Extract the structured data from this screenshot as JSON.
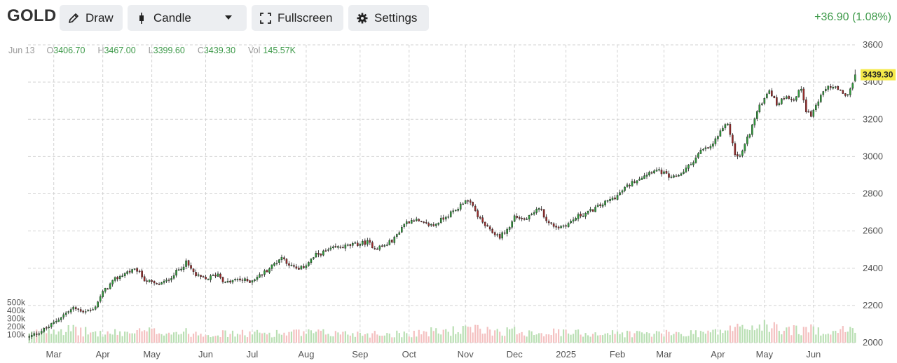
{
  "toolbar": {
    "symbol": "GOLD",
    "draw_label": "Draw",
    "chart_type_label": "Candle",
    "fullscreen_label": "Fullscreen",
    "settings_label": "Settings",
    "change_text": "+36.90 (1.08%)"
  },
  "ohlc_bar": {
    "date": "Jun 13",
    "o_key": "O",
    "o_val": "3406.70",
    "h_key": "H",
    "h_val": "3467.00",
    "l_key": "L",
    "l_val": "3399.60",
    "c_key": "C",
    "c_val": "3439.30",
    "vol_key": "Vol",
    "vol_val": "145.57K"
  },
  "colors": {
    "up": "#2f9a3a",
    "down": "#9c2b2b",
    "vol_up": "#b9dfb3",
    "vol_down": "#f4c0c0",
    "last_price_bg": "#f5e94a",
    "change_text": "#3e9a4a"
  },
  "chart_data": {
    "type": "candlestick",
    "title": "",
    "ylim": [
      2000,
      3600
    ],
    "y_ticks": [
      "3600",
      "3400",
      "3200",
      "3000",
      "2800",
      "2600",
      "2400",
      "2200",
      "2000"
    ],
    "y_tick_values": [
      3600,
      3400,
      3200,
      3000,
      2800,
      2600,
      2400,
      2200,
      2000
    ],
    "volume_ticks": [
      "500k",
      "400k",
      "300k",
      "200k",
      "100k"
    ],
    "volume_tick_values": [
      500000,
      400000,
      300000,
      200000,
      100000
    ],
    "volume_max": 600000,
    "x_ticks": [
      "Mar",
      "Apr",
      "May",
      "Jun",
      "Jul",
      "Aug",
      "Sep",
      "Oct",
      "Nov",
      "Dec",
      "2025",
      "Feb",
      "Mar",
      "Apr",
      "May",
      "Jun"
    ],
    "x_tick_index": [
      10,
      30,
      50,
      72,
      91,
      113,
      135,
      155,
      178,
      198,
      219,
      240,
      259,
      281,
      300,
      320
    ],
    "last_price": "3439.30",
    "grid": true,
    "price_anchors": [
      [
        0,
        2030
      ],
      [
        8,
        2085
      ],
      [
        14,
        2150
      ],
      [
        18,
        2185
      ],
      [
        22,
        2170
      ],
      [
        26,
        2175
      ],
      [
        30,
        2270
      ],
      [
        35,
        2340
      ],
      [
        40,
        2380
      ],
      [
        44,
        2390
      ],
      [
        47,
        2340
      ],
      [
        52,
        2310
      ],
      [
        56,
        2330
      ],
      [
        60,
        2380
      ],
      [
        64,
        2430
      ],
      [
        68,
        2360
      ],
      [
        72,
        2340
      ],
      [
        77,
        2370
      ],
      [
        80,
        2320
      ],
      [
        85,
        2340
      ],
      [
        90,
        2330
      ],
      [
        94,
        2360
      ],
      [
        98,
        2400
      ],
      [
        103,
        2460
      ],
      [
        107,
        2410
      ],
      [
        110,
        2390
      ],
      [
        113,
        2420
      ],
      [
        117,
        2470
      ],
      [
        121,
        2490
      ],
      [
        125,
        2510
      ],
      [
        130,
        2520
      ],
      [
        134,
        2530
      ],
      [
        138,
        2540
      ],
      [
        141,
        2510
      ],
      [
        145,
        2520
      ],
      [
        149,
        2560
      ],
      [
        153,
        2640
      ],
      [
        157,
        2665
      ],
      [
        160,
        2640
      ],
      [
        165,
        2630
      ],
      [
        170,
        2680
      ],
      [
        174,
        2710
      ],
      [
        178,
        2770
      ],
      [
        181,
        2730
      ],
      [
        184,
        2660
      ],
      [
        188,
        2600
      ],
      [
        192,
        2570
      ],
      [
        196,
        2620
      ],
      [
        198,
        2680
      ],
      [
        202,
        2660
      ],
      [
        206,
        2690
      ],
      [
        208,
        2730
      ],
      [
        212,
        2640
      ],
      [
        216,
        2620
      ],
      [
        220,
        2640
      ],
      [
        224,
        2680
      ],
      [
        228,
        2700
      ],
      [
        232,
        2730
      ],
      [
        236,
        2760
      ],
      [
        240,
        2790
      ],
      [
        243,
        2830
      ],
      [
        247,
        2870
      ],
      [
        251,
        2900
      ],
      [
        255,
        2930
      ],
      [
        259,
        2910
      ],
      [
        262,
        2880
      ],
      [
        266,
        2910
      ],
      [
        270,
        2960
      ],
      [
        274,
        3030
      ],
      [
        278,
        3050
      ],
      [
        281,
        3110
      ],
      [
        285,
        3180
      ],
      [
        288,
        3010
      ],
      [
        290,
        3000
      ],
      [
        294,
        3130
      ],
      [
        297,
        3240
      ],
      [
        300,
        3320
      ],
      [
        302,
        3360
      ],
      [
        305,
        3280
      ],
      [
        309,
        3330
      ],
      [
        312,
        3300
      ],
      [
        315,
        3370
      ],
      [
        317,
        3250
      ],
      [
        319,
        3220
      ],
      [
        322,
        3300
      ],
      [
        326,
        3380
      ],
      [
        330,
        3360
      ],
      [
        333,
        3320
      ],
      [
        336,
        3390
      ],
      [
        337,
        3439
      ]
    ],
    "volume_anchors": [
      [
        0,
        100
      ],
      [
        10,
        180
      ],
      [
        30,
        110
      ],
      [
        50,
        140
      ],
      [
        80,
        110
      ],
      [
        110,
        120
      ],
      [
        150,
        110
      ],
      [
        180,
        160
      ],
      [
        220,
        120
      ],
      [
        260,
        110
      ],
      [
        280,
        130
      ],
      [
        290,
        190
      ],
      [
        300,
        200
      ],
      [
        310,
        160
      ],
      [
        337,
        150
      ]
    ],
    "volume_unit": "k"
  }
}
